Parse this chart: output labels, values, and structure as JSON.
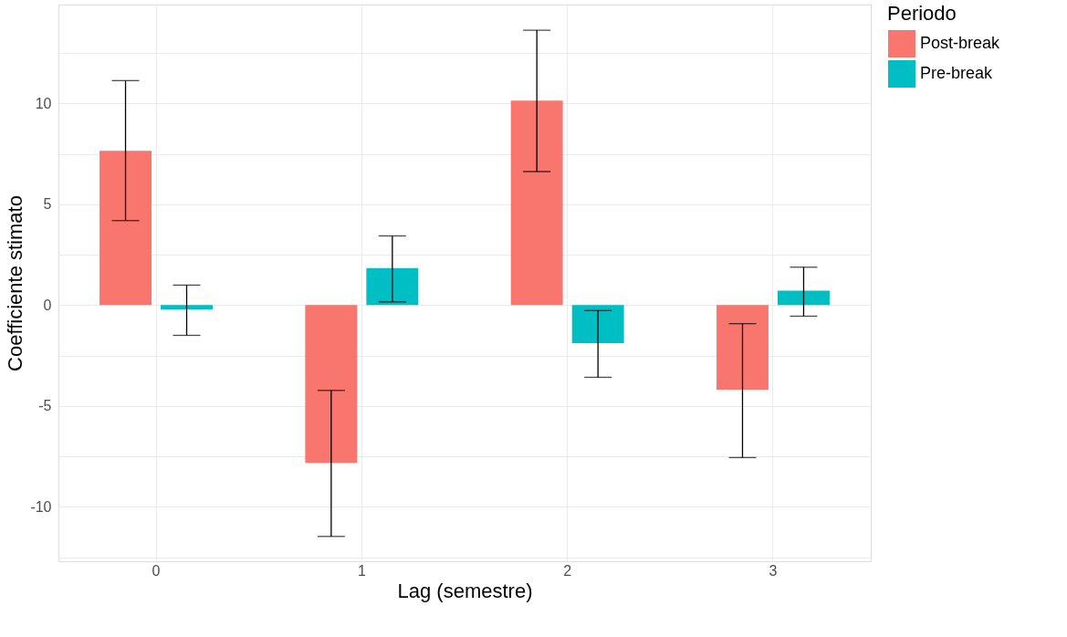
{
  "chart_data": {
    "type": "bar",
    "xlabel": "Lag (semestre)",
    "ylabel": "Coefficiente stimato",
    "legend_title": "Periodo",
    "categories": [
      "0",
      "1",
      "2",
      "3"
    ],
    "series": [
      {
        "name": "Post-break",
        "color": "#f8766d",
        "values": [
          7.65,
          -7.82,
          10.14,
          -4.19
        ],
        "errors": [
          [
            4.19,
            11.13
          ],
          [
            -11.47,
            -4.23
          ],
          [
            6.62,
            13.63
          ],
          [
            -7.56,
            -0.92
          ]
        ]
      },
      {
        "name": "Pre-break",
        "color": "#00bfc4",
        "values": [
          -0.21,
          1.84,
          -1.89,
          0.71
        ],
        "errors": [
          [
            -1.5,
            0.99
          ],
          [
            0.16,
            3.43
          ],
          [
            -3.58,
            -0.27
          ],
          [
            -0.55,
            1.88
          ]
        ]
      }
    ],
    "ylim": [
      -12.7,
      14.9
    ],
    "yticks": [
      {
        "value": -12.5,
        "label": null
      },
      -10,
      {
        "value": -7.5,
        "label": null
      },
      -5,
      {
        "value": -2.5,
        "label": null
      },
      0,
      {
        "value": 2.5,
        "label": null
      },
      5,
      {
        "value": 7.5,
        "label": null
      },
      10,
      {
        "value": 12.5,
        "label": null
      }
    ],
    "grid": true,
    "legend": "right"
  }
}
